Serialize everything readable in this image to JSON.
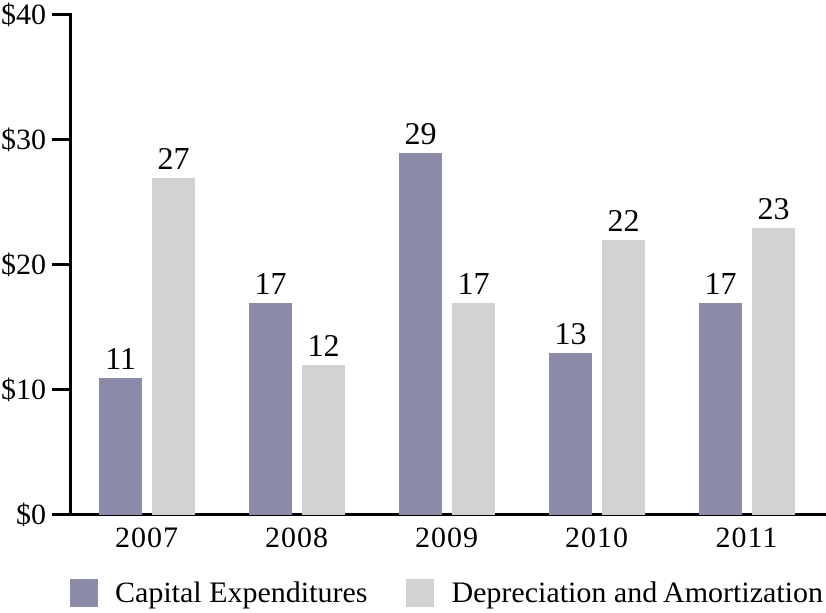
{
  "figure": {
    "background_color": "#ffffff",
    "axis_color": "#000000",
    "text_color": "#000000"
  },
  "chart_data": {
    "type": "bar",
    "categories": [
      "2007",
      "2008",
      "2009",
      "2010",
      "2011"
    ],
    "series": [
      {
        "name": "Capital Expenditures",
        "color": "#8B8BA9",
        "values": [
          11,
          17,
          29,
          13,
          17
        ]
      },
      {
        "name": "Depreciation and Amortization",
        "color": "#D2D2D2",
        "values": [
          27,
          12,
          17,
          22,
          23
        ]
      }
    ],
    "ylim": [
      0,
      40
    ],
    "ytick_interval": 10,
    "ytick_labels": [
      "$0",
      "$10",
      "$20",
      "$30",
      "$40"
    ],
    "xlabel": "",
    "ylabel": "",
    "grid": false,
    "bar_value_labels": true,
    "legend_position": "bottom"
  }
}
